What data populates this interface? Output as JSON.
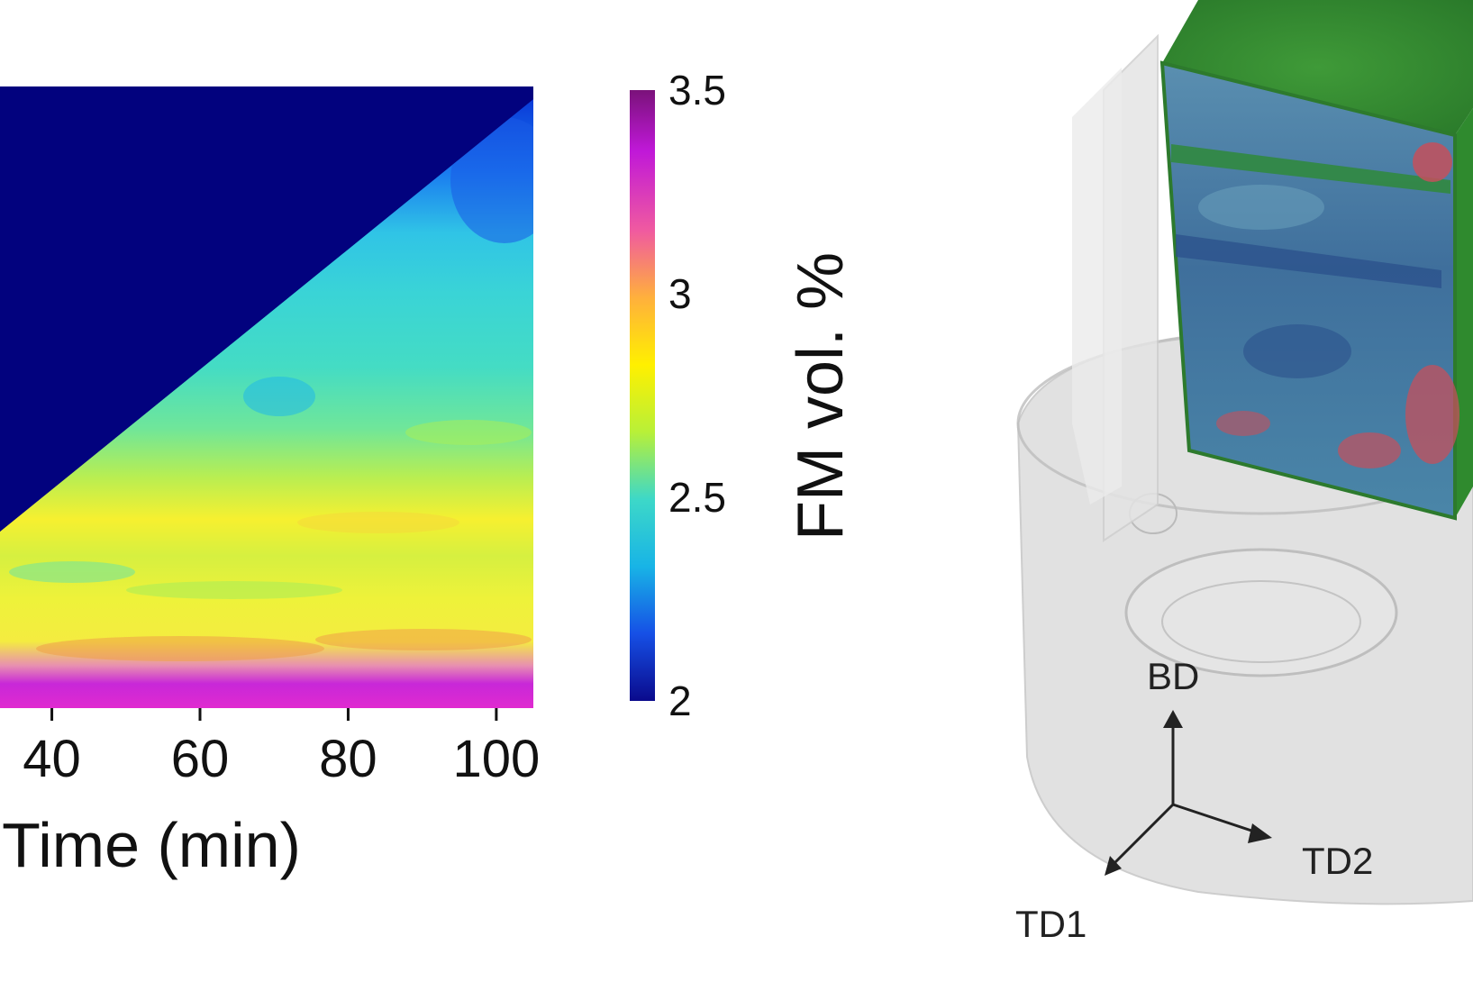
{
  "chart_data": {
    "type": "heatmap",
    "xlabel": "Time (min)",
    "x_ticks": [
      40,
      60,
      80,
      100
    ],
    "x_range": [
      33,
      105
    ],
    "colorbar": {
      "label": "FM vol. %",
      "ticks": [
        2,
        2.5,
        3,
        3.5
      ],
      "range": [
        2,
        3.5
      ],
      "colormap": "parula-to-magenta",
      "stops": [
        "#0a0a8c",
        "#1650e6",
        "#18b4e6",
        "#3dd8c8",
        "#b8f038",
        "#fff000",
        "#ffb03c",
        "#f05aa0",
        "#c018d8",
        "#7a127a"
      ]
    },
    "region_masked_color": "#02027e",
    "bands_bottom_to_top": [
      {
        "level": "bottom",
        "value": 3.35
      },
      {
        "level": "lower",
        "value": 3.0
      },
      {
        "level": "lower-mid",
        "value": 2.85
      },
      {
        "level": "middle",
        "value": 2.75
      },
      {
        "level": "upper-mid",
        "value": 2.6
      },
      {
        "level": "top",
        "value": 2.45
      },
      {
        "level": "corner",
        "value": 2.2
      }
    ]
  },
  "figure": {
    "directions": {
      "bd": "BD",
      "td1": "TD1",
      "td2": "TD2"
    },
    "colors": {
      "green_surface": "#3f9a38",
      "section_blue": "#3f7f9c",
      "section_red": "#c4505c",
      "translucent_gray": "#d9d9d9"
    }
  }
}
